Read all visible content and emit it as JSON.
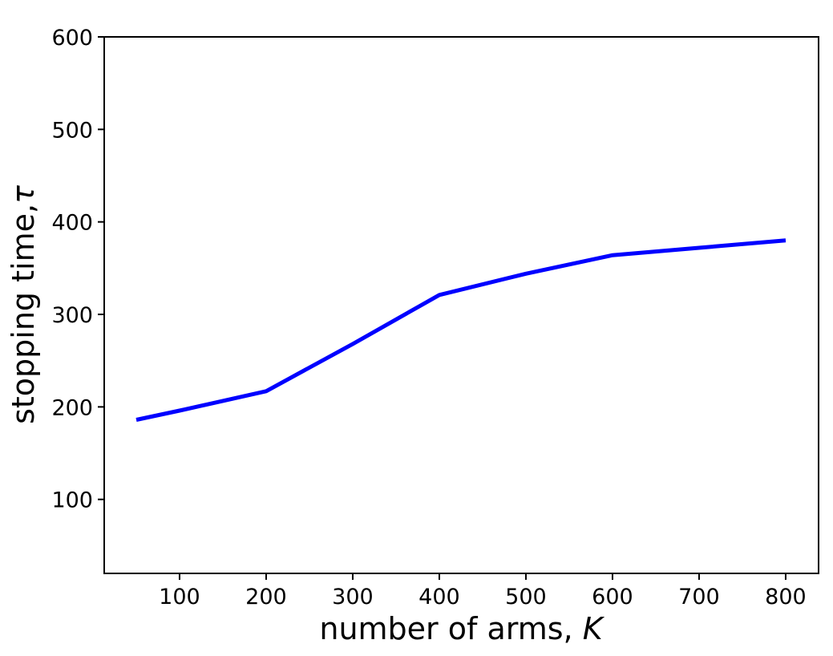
{
  "chart_data": {
    "type": "line",
    "title": "",
    "xlabel_text": "number of arms, ",
    "xlabel_symbol": "K",
    "ylabel_text": "stopping time,",
    "ylabel_symbol": "τ",
    "xlim": [
      13,
      838
    ],
    "ylim": [
      20,
      600
    ],
    "xticks": [
      100,
      200,
      300,
      400,
      500,
      600,
      700,
      800
    ],
    "yticks": [
      100,
      200,
      300,
      400,
      500,
      600
    ],
    "grid": false,
    "legend": "none",
    "series": [
      {
        "color": "#0000ff",
        "x": [
          50,
          100,
          200,
          300,
          400,
          500,
          600,
          700,
          800
        ],
        "y": [
          186,
          196,
          217,
          268,
          321,
          344,
          364,
          372,
          380
        ]
      }
    ]
  }
}
